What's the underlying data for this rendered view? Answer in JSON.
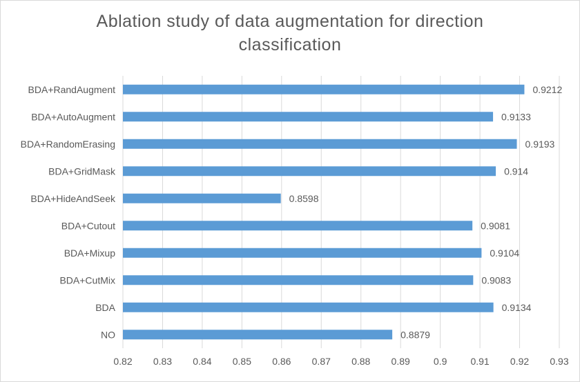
{
  "chart_data": {
    "type": "bar",
    "orientation": "horizontal",
    "title_lines": [
      "Ablation study of data augmentation for direction",
      "classification"
    ],
    "categories": [
      "BDA+RandAugment",
      "BDA+AutoAugment",
      "BDA+RandomErasing",
      "BDA+GridMask",
      "BDA+HideAndSeek",
      "BDA+Cutout",
      "BDA+Mixup",
      "BDA+CutMix",
      "BDA",
      "NO"
    ],
    "values": [
      0.9212,
      0.9133,
      0.9193,
      0.914,
      0.8598,
      0.9081,
      0.9104,
      0.9083,
      0.9134,
      0.8879
    ],
    "value_labels": [
      "0.9212",
      "0.9133",
      "0.9193",
      "0.914",
      "0.8598",
      "0.9081",
      "0.9104",
      "0.9083",
      "0.9134",
      "0.8879"
    ],
    "xlim": [
      0.82,
      0.93
    ],
    "xticks": [
      0.82,
      0.83,
      0.84,
      0.85,
      0.86,
      0.87,
      0.88,
      0.89,
      0.9,
      0.91,
      0.92,
      0.93
    ],
    "xtick_labels": [
      "0.82",
      "0.83",
      "0.84",
      "0.85",
      "0.86",
      "0.87",
      "0.88",
      "0.89",
      "0.9",
      "0.91",
      "0.92",
      "0.93"
    ],
    "xlabel": "",
    "ylabel": "",
    "grid": "vertical",
    "legend": "none",
    "bar_color": "#5b9bd5",
    "grid_color": "#d9d9d9"
  }
}
